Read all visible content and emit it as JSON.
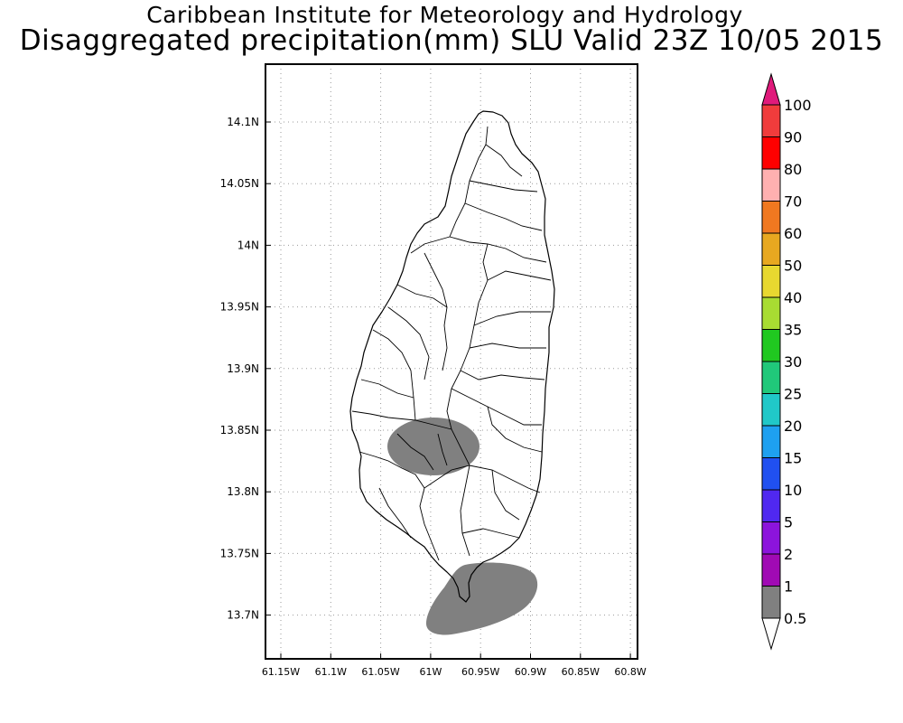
{
  "title": {
    "line1": "Caribbean Institute for Meteorology and Hydrology",
    "line2": "Disaggregated precipitation(mm) SLU Valid 23Z 10/05 2015"
  },
  "map": {
    "y_ticks": [
      "14.1N",
      "14.05N",
      "14N",
      "13.95N",
      "13.9N",
      "13.85N",
      "13.8N",
      "13.75N",
      "13.7N"
    ],
    "x_ticks": [
      "61.15W",
      "61.1W",
      "61.05W",
      "61W",
      "60.95W",
      "60.9W",
      "60.85W",
      "60.8W"
    ],
    "lat_range": [
      13.665,
      14.145
    ],
    "lon_range": [
      -61.165,
      -60.795
    ],
    "grid": "dotted",
    "precip_shading": [
      {
        "band": "0.5-1",
        "color": "#808080",
        "area": "south-central interior near 13.83N 60.97W"
      },
      {
        "band": "0.5-1",
        "color": "#808080",
        "area": "southern tip offshore near 13.71N 60.95W"
      }
    ]
  },
  "colorbar": {
    "labels": [
      "100",
      "90",
      "80",
      "70",
      "60",
      "50",
      "40",
      "35",
      "30",
      "25",
      "20",
      "15",
      "10",
      "5",
      "2",
      "1",
      "0.5"
    ],
    "colors": [
      "#e01a7b",
      "#f03c3c",
      "#ff0000",
      "#ffb0b0",
      "#f07820",
      "#e8a820",
      "#e8d830",
      "#a8dc32",
      "#20c820",
      "#20c87a",
      "#20c8c8",
      "#1ea0f0",
      "#2050f0",
      "#5028f0",
      "#8c14dc",
      "#a00ab4",
      "#808080",
      "#ffffff"
    ]
  }
}
